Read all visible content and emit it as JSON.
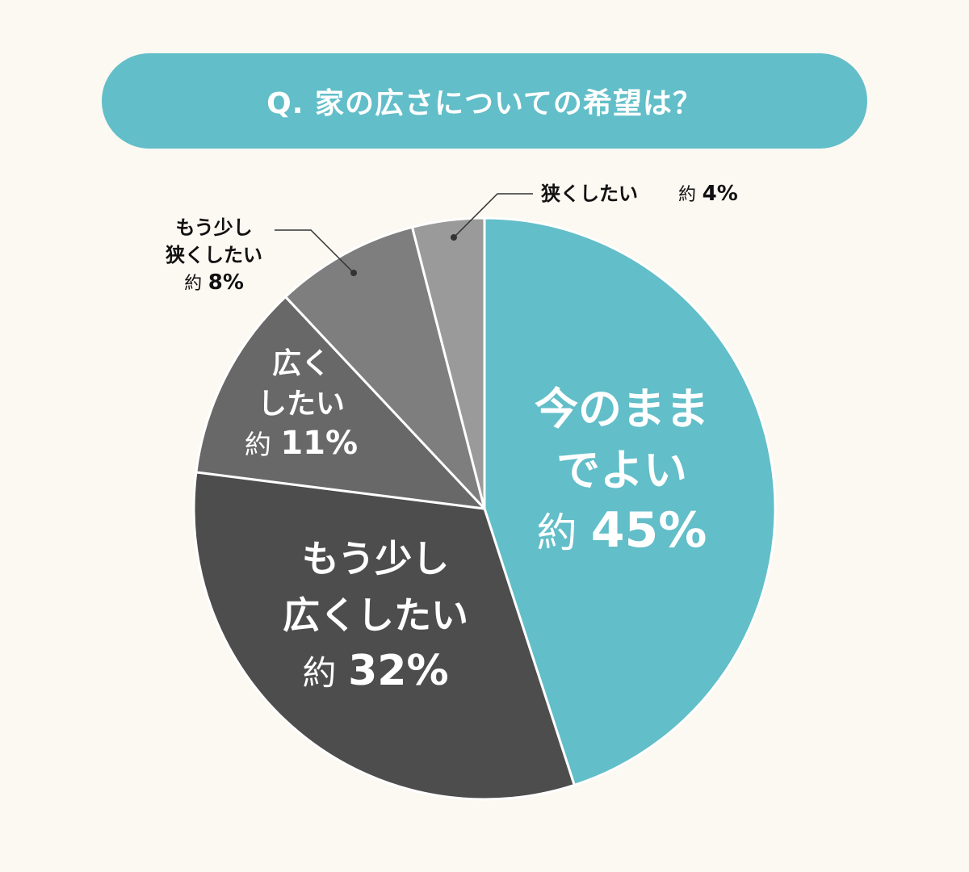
{
  "title": "Q. 家の広さについての希望は？",
  "colors": {
    "background": "#fcf8f2",
    "accent": "#62bec8",
    "slice_dark": "#4d4d4d",
    "slice_mid": "#686868",
    "slice_light": "#7e7e7e",
    "slice_lighter": "#9a9a9a",
    "slice_separator": "#ffffff",
    "leader_line": "#333333"
  },
  "chart_data": {
    "type": "pie",
    "title": "Q. 家の広さについての希望は？",
    "slices": [
      {
        "label_lines": [
          "今のまま",
          "でよい"
        ],
        "prefix": "約",
        "value": 45,
        "value_text": "45%",
        "color": "#62bec8",
        "text_color": "#ffffff",
        "label_position": "inside"
      },
      {
        "label_lines": [
          "もう少し",
          "広くしたい"
        ],
        "prefix": "約",
        "value": 32,
        "value_text": "32%",
        "color": "#4d4d4d",
        "text_color": "#ffffff",
        "label_position": "inside"
      },
      {
        "label_lines": [
          "広く",
          "したい"
        ],
        "prefix": "約",
        "value": 11,
        "value_text": "11%",
        "color": "#686868",
        "text_color": "#ffffff",
        "label_position": "inside"
      },
      {
        "label_lines": [
          "もう少し",
          "狭くしたい"
        ],
        "prefix": "約",
        "value": 8,
        "value_text": "8%",
        "color": "#7e7e7e",
        "text_color": "#111111",
        "label_position": "outside-left"
      },
      {
        "label_lines": [
          "狭くしたい"
        ],
        "prefix": "約",
        "value": 4,
        "value_text": "4%",
        "color": "#9a9a9a",
        "text_color": "#111111",
        "label_position": "outside-top"
      }
    ],
    "start_angle": "12 o'clock",
    "direction": "clockwise"
  }
}
